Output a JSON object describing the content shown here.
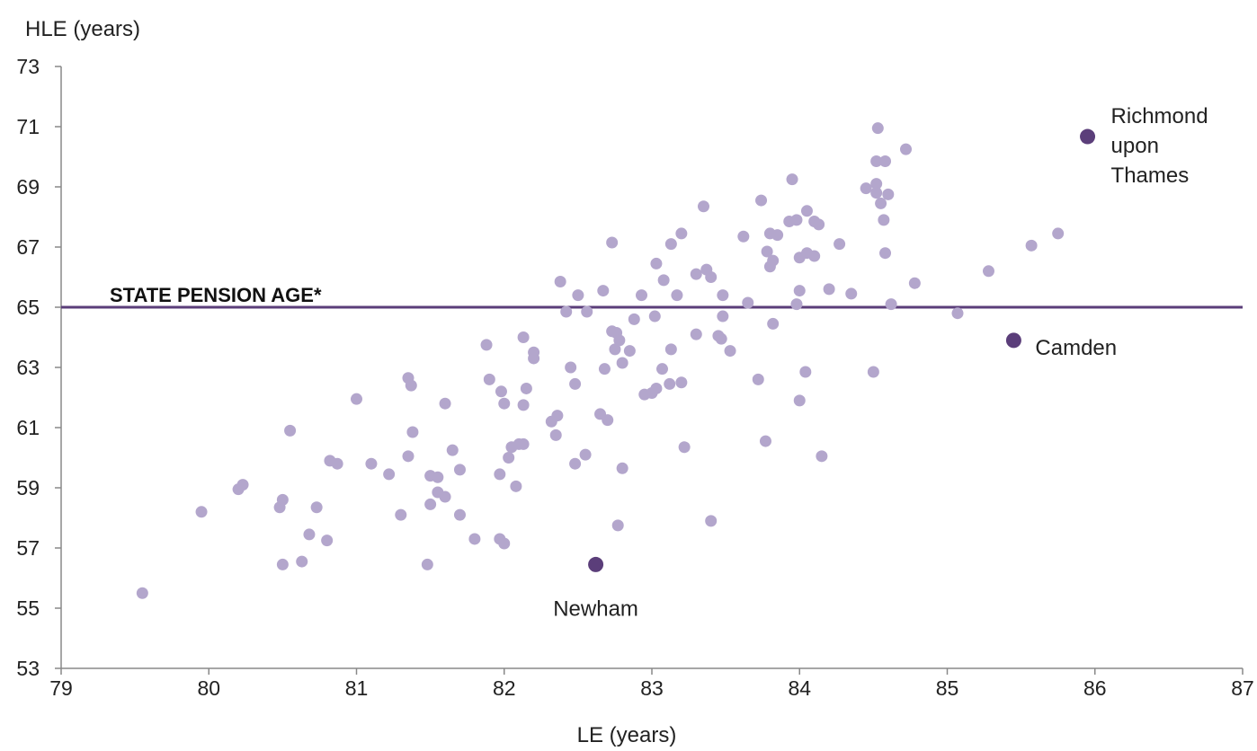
{
  "chart_data": {
    "type": "scatter",
    "xlabel": "LE (years)",
    "ylabel": "HLE (years)",
    "xlim": [
      79,
      87
    ],
    "ylim": [
      53,
      73
    ],
    "x_ticks": [
      79,
      80,
      81,
      82,
      83,
      84,
      85,
      86,
      87
    ],
    "y_ticks": [
      53,
      55,
      57,
      59,
      61,
      63,
      65,
      67,
      69,
      71,
      73
    ],
    "grid": false,
    "colors": {
      "points": "#b3a6cc",
      "highlight": "#5b3e7a",
      "reference_line": "#5b3e7a",
      "axis": "#888888"
    },
    "reference_line": {
      "y": 65,
      "label": "STATE PENSION AGE*"
    },
    "highlighted": [
      {
        "x": 85.95,
        "y": 70.67,
        "label": "Richmond upon Thames",
        "label_lines": [
          "Richmond",
          "upon",
          "Thames"
        ]
      },
      {
        "x": 85.45,
        "y": 63.9,
        "label": "Camden",
        "label_lines": [
          "Camden"
        ]
      },
      {
        "x": 82.62,
        "y": 56.45,
        "label": "Newham",
        "label_lines": [
          "Newham"
        ]
      }
    ],
    "points": [
      [
        79.55,
        55.5
      ],
      [
        79.95,
        58.2
      ],
      [
        80.2,
        58.95
      ],
      [
        80.23,
        59.1
      ],
      [
        80.48,
        58.35
      ],
      [
        80.5,
        58.6
      ],
      [
        80.5,
        56.45
      ],
      [
        80.55,
        60.9
      ],
      [
        80.63,
        56.55
      ],
      [
        80.68,
        57.45
      ],
      [
        80.73,
        58.35
      ],
      [
        80.8,
        57.25
      ],
      [
        80.82,
        59.9
      ],
      [
        80.87,
        59.8
      ],
      [
        81.0,
        61.95
      ],
      [
        81.1,
        59.8
      ],
      [
        81.22,
        59.45
      ],
      [
        81.3,
        58.1
      ],
      [
        81.35,
        62.65
      ],
      [
        81.35,
        60.05
      ],
      [
        81.37,
        62.4
      ],
      [
        81.38,
        60.85
      ],
      [
        81.48,
        56.45
      ],
      [
        81.5,
        59.4
      ],
      [
        81.5,
        58.45
      ],
      [
        81.55,
        58.85
      ],
      [
        81.55,
        59.35
      ],
      [
        81.6,
        61.8
      ],
      [
        81.6,
        58.7
      ],
      [
        81.65,
        60.25
      ],
      [
        81.7,
        58.1
      ],
      [
        81.7,
        59.6
      ],
      [
        81.8,
        57.3
      ],
      [
        81.88,
        63.75
      ],
      [
        81.9,
        62.6
      ],
      [
        81.97,
        59.45
      ],
      [
        81.97,
        57.3
      ],
      [
        81.98,
        62.2
      ],
      [
        82.0,
        61.8
      ],
      [
        82.0,
        57.15
      ],
      [
        82.03,
        60.0
      ],
      [
        82.05,
        60.35
      ],
      [
        82.08,
        59.05
      ],
      [
        82.1,
        60.45
      ],
      [
        82.13,
        61.75
      ],
      [
        82.13,
        60.45
      ],
      [
        82.13,
        64.0
      ],
      [
        82.15,
        62.3
      ],
      [
        82.2,
        63.5
      ],
      [
        82.2,
        63.3
      ],
      [
        82.32,
        61.2
      ],
      [
        82.35,
        60.75
      ],
      [
        82.36,
        61.4
      ],
      [
        82.38,
        65.85
      ],
      [
        82.42,
        64.85
      ],
      [
        82.45,
        63.0
      ],
      [
        82.48,
        62.45
      ],
      [
        82.48,
        59.8
      ],
      [
        82.5,
        65.4
      ],
      [
        82.55,
        60.1
      ],
      [
        82.56,
        64.85
      ],
      [
        82.65,
        61.45
      ],
      [
        82.67,
        65.55
      ],
      [
        82.68,
        62.95
      ],
      [
        82.7,
        61.25
      ],
      [
        82.73,
        67.15
      ],
      [
        82.73,
        64.2
      ],
      [
        82.75,
        63.6
      ],
      [
        82.76,
        64.15
      ],
      [
        82.77,
        57.75
      ],
      [
        82.78,
        63.9
      ],
      [
        82.8,
        63.15
      ],
      [
        82.8,
        59.65
      ],
      [
        82.85,
        63.55
      ],
      [
        82.88,
        64.6
      ],
      [
        82.93,
        65.4
      ],
      [
        82.95,
        62.1
      ],
      [
        83.0,
        62.15
      ],
      [
        83.02,
        64.7
      ],
      [
        83.03,
        62.3
      ],
      [
        83.03,
        66.45
      ],
      [
        83.07,
        62.95
      ],
      [
        83.08,
        65.9
      ],
      [
        83.12,
        62.45
      ],
      [
        83.13,
        67.1
      ],
      [
        83.13,
        63.6
      ],
      [
        83.17,
        65.4
      ],
      [
        83.2,
        67.45
      ],
      [
        83.2,
        62.5
      ],
      [
        83.22,
        60.35
      ],
      [
        83.3,
        64.1
      ],
      [
        83.3,
        66.1
      ],
      [
        83.35,
        68.35
      ],
      [
        83.37,
        66.25
      ],
      [
        83.4,
        66.0
      ],
      [
        83.4,
        57.9
      ],
      [
        83.45,
        64.05
      ],
      [
        83.47,
        63.95
      ],
      [
        83.48,
        64.7
      ],
      [
        83.48,
        65.4
      ],
      [
        83.53,
        63.55
      ],
      [
        83.62,
        67.35
      ],
      [
        83.65,
        65.15
      ],
      [
        83.72,
        62.6
      ],
      [
        83.74,
        68.55
      ],
      [
        83.77,
        60.55
      ],
      [
        83.78,
        66.85
      ],
      [
        83.8,
        67.45
      ],
      [
        83.8,
        66.35
      ],
      [
        83.82,
        66.55
      ],
      [
        83.82,
        64.45
      ],
      [
        83.85,
        67.4
      ],
      [
        83.93,
        67.85
      ],
      [
        83.95,
        69.25
      ],
      [
        83.98,
        67.9
      ],
      [
        83.98,
        65.1
      ],
      [
        84.0,
        66.65
      ],
      [
        84.0,
        65.55
      ],
      [
        84.0,
        61.9
      ],
      [
        84.04,
        62.85
      ],
      [
        84.05,
        68.2
      ],
      [
        84.05,
        66.8
      ],
      [
        84.1,
        67.85
      ],
      [
        84.1,
        66.7
      ],
      [
        84.13,
        67.75
      ],
      [
        84.15,
        60.05
      ],
      [
        84.2,
        65.6
      ],
      [
        84.27,
        67.1
      ],
      [
        84.35,
        65.45
      ],
      [
        84.45,
        68.95
      ],
      [
        84.5,
        62.85
      ],
      [
        84.52,
        69.85
      ],
      [
        84.52,
        69.1
      ],
      [
        84.52,
        68.8
      ],
      [
        84.53,
        70.95
      ],
      [
        84.55,
        68.45
      ],
      [
        84.57,
        67.9
      ],
      [
        84.58,
        69.85
      ],
      [
        84.58,
        66.8
      ],
      [
        84.6,
        68.75
      ],
      [
        84.62,
        65.1
      ],
      [
        84.72,
        70.25
      ],
      [
        84.78,
        65.8
      ],
      [
        85.07,
        64.8
      ],
      [
        85.28,
        66.2
      ],
      [
        85.57,
        67.05
      ],
      [
        85.75,
        67.45
      ]
    ]
  }
}
